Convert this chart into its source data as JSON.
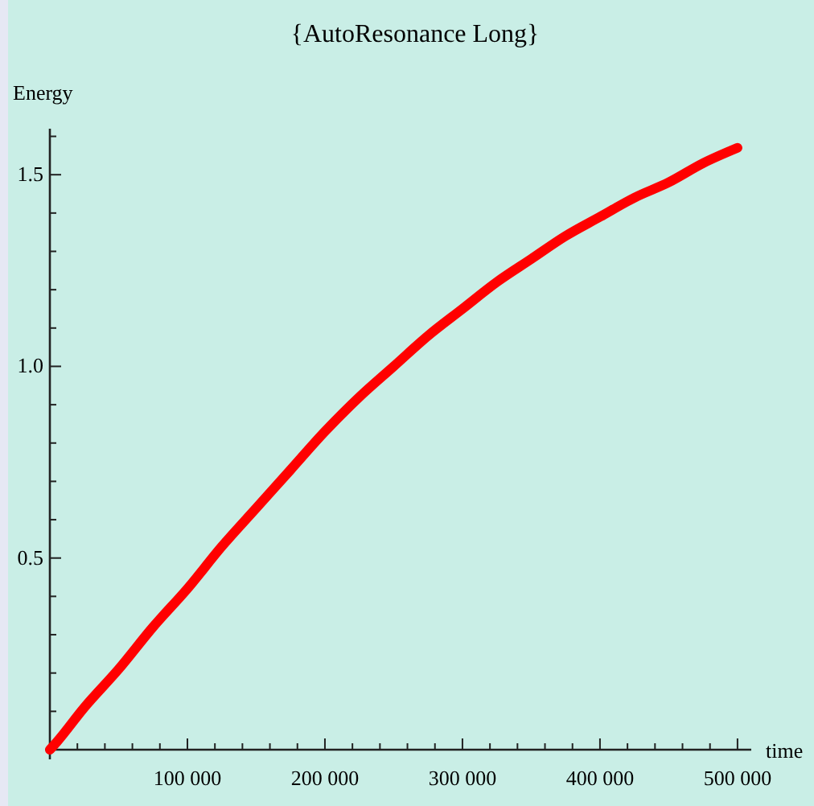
{
  "chart_data": {
    "type": "line",
    "title": "{AutoResonance Long}",
    "xlabel": "time",
    "ylabel": "Energy",
    "x": [
      0,
      5000,
      25000,
      50000,
      75000,
      100000,
      125000,
      150000,
      175000,
      200000,
      225000,
      250000,
      275000,
      300000,
      325000,
      350000,
      375000,
      400000,
      425000,
      450000,
      475000,
      500000
    ],
    "series": [
      {
        "color": "#ff0000",
        "values": [
          0,
          0.02,
          0.11,
          0.21,
          0.32,
          0.42,
          0.53,
          0.63,
          0.73,
          0.83,
          0.92,
          1.0,
          1.08,
          1.15,
          1.22,
          1.28,
          1.34,
          1.39,
          1.44,
          1.48,
          1.53,
          1.57
        ]
      }
    ],
    "xlim": [
      0,
      510000
    ],
    "ylim": [
      0,
      1.62
    ],
    "xticks": [
      {
        "value": 20000,
        "label": null
      },
      {
        "value": 40000,
        "label": null
      },
      {
        "value": 60000,
        "label": null
      },
      {
        "value": 80000,
        "label": null
      },
      {
        "value": 100000,
        "label": "100 000"
      },
      {
        "value": 120000,
        "label": null
      },
      {
        "value": 140000,
        "label": null
      },
      {
        "value": 160000,
        "label": null
      },
      {
        "value": 180000,
        "label": null
      },
      {
        "value": 200000,
        "label": "200 000"
      },
      {
        "value": 220000,
        "label": null
      },
      {
        "value": 240000,
        "label": null
      },
      {
        "value": 260000,
        "label": null
      },
      {
        "value": 280000,
        "label": null
      },
      {
        "value": 300000,
        "label": "300 000"
      },
      {
        "value": 320000,
        "label": null
      },
      {
        "value": 340000,
        "label": null
      },
      {
        "value": 360000,
        "label": null
      },
      {
        "value": 380000,
        "label": null
      },
      {
        "value": 400000,
        "label": "400 000"
      },
      {
        "value": 420000,
        "label": null
      },
      {
        "value": 440000,
        "label": null
      },
      {
        "value": 460000,
        "label": null
      },
      {
        "value": 480000,
        "label": null
      },
      {
        "value": 500000,
        "label": "500 000"
      }
    ],
    "yticks": [
      {
        "value": 0.1,
        "label": null
      },
      {
        "value": 0.2,
        "label": null
      },
      {
        "value": 0.3,
        "label": null
      },
      {
        "value": 0.4,
        "label": null
      },
      {
        "value": 0.5,
        "label": "0.5"
      },
      {
        "value": 0.6,
        "label": null
      },
      {
        "value": 0.7,
        "label": null
      },
      {
        "value": 0.8,
        "label": null
      },
      {
        "value": 0.9,
        "label": null
      },
      {
        "value": 1.0,
        "label": "1.0"
      },
      {
        "value": 1.1,
        "label": null
      },
      {
        "value": 1.2,
        "label": null
      },
      {
        "value": 1.3,
        "label": null
      },
      {
        "value": 1.4,
        "label": null
      },
      {
        "value": 1.5,
        "label": "1.5"
      },
      {
        "value": 1.6,
        "label": null
      }
    ],
    "marker": "none",
    "line_style": "solid"
  }
}
